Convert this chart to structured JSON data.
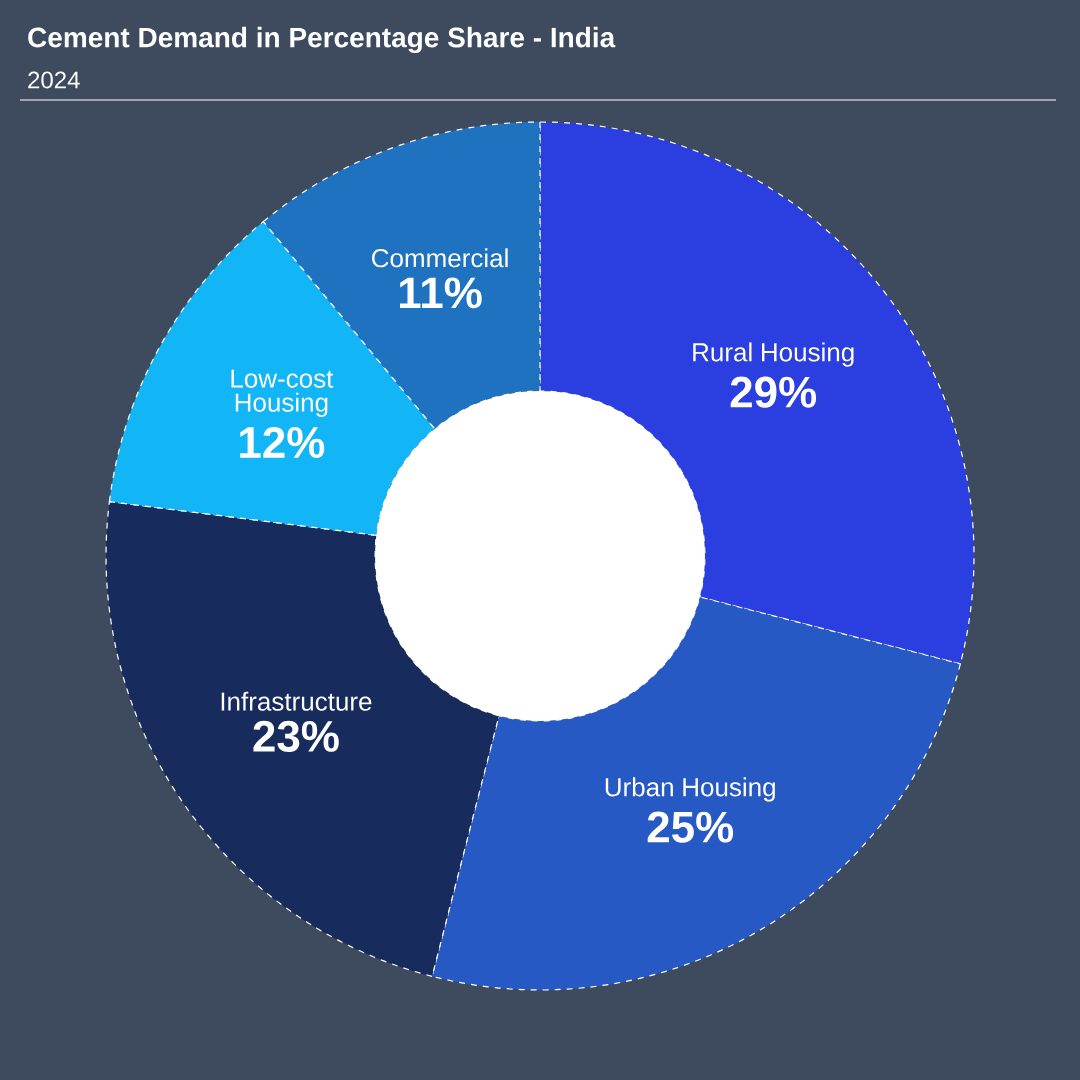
{
  "chart_data": {
    "type": "donut",
    "title": "Cement Demand in Percentage Share - India",
    "subtitle": "2024",
    "categories": [
      "Rural Housing",
      "Urban Housing",
      "Infrastructure",
      "Low-cost Housing",
      "Commercial"
    ],
    "values": [
      29,
      25,
      23,
      12,
      11
    ],
    "value_labels": [
      "29%",
      "25%",
      "23%",
      "12%",
      "11%"
    ],
    "colors": [
      "#2b3ee0",
      "#2759c4",
      "#172b5c",
      "#12b5f5",
      "#1f72c0"
    ]
  }
}
